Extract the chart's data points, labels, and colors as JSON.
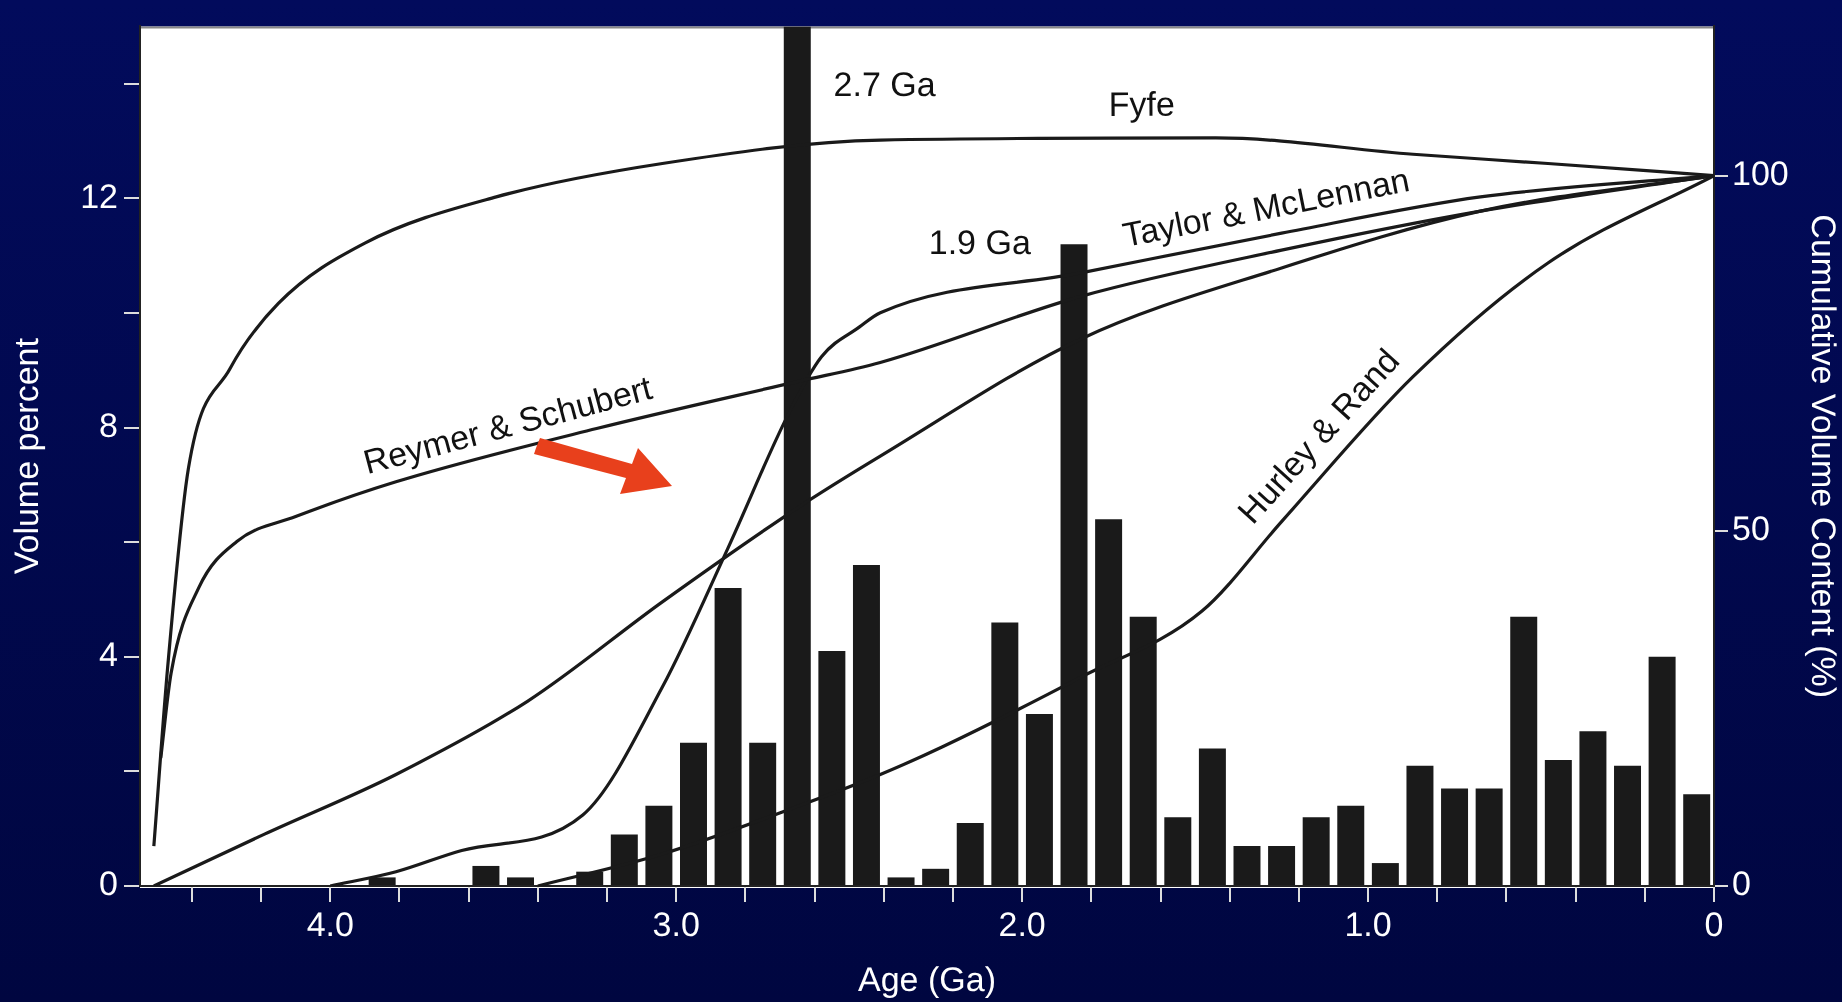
{
  "chart_data": {
    "type": "histogram",
    "xlabel": "Age (Ga)",
    "ylabel": "Volume percent",
    "y2label": "Cumulative Volume Content (%)",
    "bins": [
      0,
      0.1,
      0.2,
      0.3,
      0.4,
      0.5,
      0.6,
      0.7,
      0.8,
      0.9,
      1.0,
      1.1,
      1.2,
      1.3,
      1.4,
      1.5,
      1.6,
      1.7,
      1.8,
      1.9,
      2.0,
      2.1,
      2.2,
      2.3,
      2.4,
      2.5,
      2.6,
      2.7,
      2.8,
      2.9,
      3.0,
      3.1,
      3.2,
      3.3,
      3.4,
      3.5,
      3.6,
      3.7,
      3.8,
      3.9
    ],
    "values": [
      1.6,
      4.0,
      2.1,
      2.7,
      2.2,
      4.7,
      1.7,
      1.7,
      2.1,
      0.4,
      1.4,
      1.2,
      0.7,
      0.7,
      2.4,
      1.2,
      4.7,
      6.4,
      11.2,
      3.0,
      4.6,
      1.1,
      0.3,
      0.15,
      5.6,
      4.1,
      15,
      2.5,
      5.2,
      2.5,
      1.4,
      0.9,
      0.25,
      0,
      0.15,
      0.35,
      0,
      0,
      0.15
    ],
    "color": "#1a1a1a",
    "series": [
      {
        "type": "line",
        "axis": "y2",
        "name": "Fyfe",
        "color": "#1a1a1a",
        "x": [
          4.51,
          4.47,
          4.41,
          4.29,
          4.15,
          3.9,
          3.52,
          3.04,
          2.41,
          1.44,
          0.87,
          0.48,
          0
        ],
        "values": [
          5.6,
          30.8,
          58.8,
          72.8,
          82,
          90.5,
          97,
          101.7,
          105,
          105.3,
          103,
          101.7,
          100
        ]
      },
      {
        "type": "line",
        "axis": "y2",
        "name": "Reymer & Schubert",
        "color": "#1a1a1a",
        "x": [
          4.49,
          4.46,
          4.38,
          4.27,
          4.1,
          3.81,
          3.23,
          2.65,
          2.41,
          1.83,
          1.25,
          0.675,
          0
        ],
        "values": [
          18,
          30,
          42,
          48.5,
          52,
          56.9,
          64.4,
          71,
          73.7,
          83,
          89.5,
          95,
          100
        ]
      },
      {
        "type": "line",
        "axis": "y2",
        "color": "#1a1a1a",
        "x": [
          4.51,
          4.19,
          3.81,
          3.43,
          3.04,
          2.65,
          2.41,
          1.83,
          1.25,
          0.675,
          0
        ],
        "values": [
          0,
          7.3,
          15.7,
          26,
          40,
          53.2,
          60.5,
          77,
          87,
          95,
          100
        ]
      },
      {
        "type": "line",
        "axis": "y2",
        "name": "Taylor & McLennan",
        "color": "#1a1a1a",
        "x": [
          4.0,
          3.81,
          3.62,
          3.27,
          3.04,
          2.85,
          2.68,
          2.58,
          2.47,
          2.41,
          1.83,
          1.25,
          0.675,
          0
        ],
        "values": [
          0,
          2,
          5,
          10,
          28,
          47.6,
          66,
          74.5,
          78.7,
          80.7,
          86.3,
          91.9,
          97,
          100
        ]
      },
      {
        "type": "line",
        "axis": "y2",
        "name": "Hurley & Rand",
        "color": "#1a1a1a",
        "x": [
          3.4,
          3.04,
          2.65,
          2.41,
          2.23,
          1.83,
          1.48,
          1.25,
          0.87,
          0.48,
          0
        ],
        "values": [
          0,
          4.5,
          11.2,
          15.7,
          19.6,
          29.4,
          38.7,
          51.3,
          71.7,
          87.7,
          100
        ]
      }
    ],
    "annotations": [
      "2.7 Ga",
      "1.9 Ga"
    ],
    "xlim": [
      4.55,
      0
    ],
    "xticks": [
      {
        "value": 4.4,
        "label": null
      },
      {
        "value": 4.2,
        "label": null
      },
      {
        "value": 4.0,
        "label": "4.0"
      },
      {
        "value": 3.8,
        "label": null
      },
      {
        "value": 3.6,
        "label": null
      },
      {
        "value": 3.4,
        "label": null
      },
      {
        "value": 3.2,
        "label": null
      },
      {
        "value": 3.0,
        "label": "3.0"
      },
      {
        "value": 2.8,
        "label": null
      },
      {
        "value": 2.6,
        "label": null
      },
      {
        "value": 2.4,
        "label": null
      },
      {
        "value": 2.2,
        "label": null
      },
      {
        "value": 2.0,
        "label": "2.0"
      },
      {
        "value": 1.8,
        "label": null
      },
      {
        "value": 1.6,
        "label": null
      },
      {
        "value": 1.4,
        "label": null
      },
      {
        "value": 1.2,
        "label": null
      },
      {
        "value": 1.0,
        "label": "1.0"
      },
      {
        "value": 0.8,
        "label": null
      },
      {
        "value": 0.6,
        "label": null
      },
      {
        "value": 0.4,
        "label": null
      },
      {
        "value": 0.2,
        "label": null
      },
      0
    ],
    "ylim": [
      0,
      15
    ],
    "yticks": [
      0,
      {
        "value": 2,
        "label": null
      },
      4,
      {
        "value": 6,
        "label": null
      },
      8,
      {
        "value": 10,
        "label": null
      },
      12,
      {
        "value": 14,
        "label": null
      }
    ],
    "y2lim": [
      0,
      121
    ],
    "y2ticks": [
      0,
      50,
      100
    ],
    "grid": false,
    "legend": false
  }
}
